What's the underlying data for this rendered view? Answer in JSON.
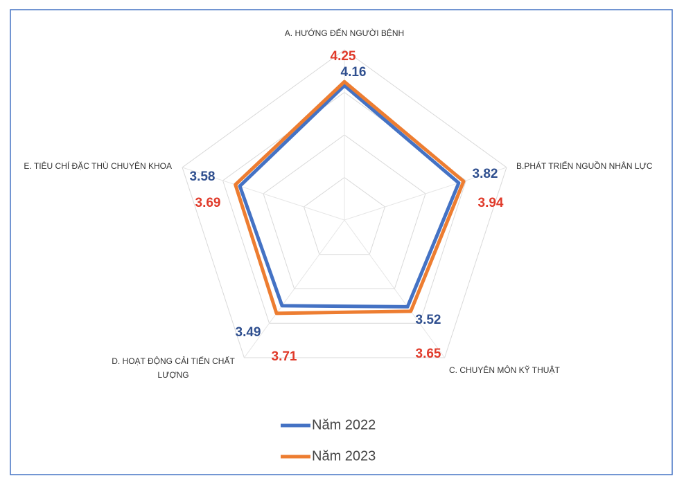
{
  "chart_data": {
    "type": "radar",
    "categories": [
      "A. HƯỚNG ĐẾN NGƯỜI BỆNH",
      "B.PHÁT TRIỂN NGUỒN NHÂN LỰC",
      "C. CHUYÊN MÔN KỸ THUẬT",
      "D. HOẠT ĐỘNG CẢI TIẾN CHẤT LƯỢNG",
      "E. TIÊU CHÍ ĐẶC THÙ CHUYÊN KHOA"
    ],
    "series": [
      {
        "name": "Năm 2022",
        "color": "#4472c4",
        "label_color": "#2f4f8f",
        "values": [
          4.16,
          3.82,
          3.52,
          3.49,
          3.58
        ]
      },
      {
        "name": "Năm 2023",
        "color": "#ed7d31",
        "label_color": "#e03a2a",
        "values": [
          4.25,
          3.94,
          3.65,
          3.71,
          3.69
        ]
      }
    ],
    "ylim": [
      1,
      5
    ],
    "yticks": [
      2,
      3,
      4,
      5
    ],
    "grid": true,
    "legend": "bottom"
  }
}
